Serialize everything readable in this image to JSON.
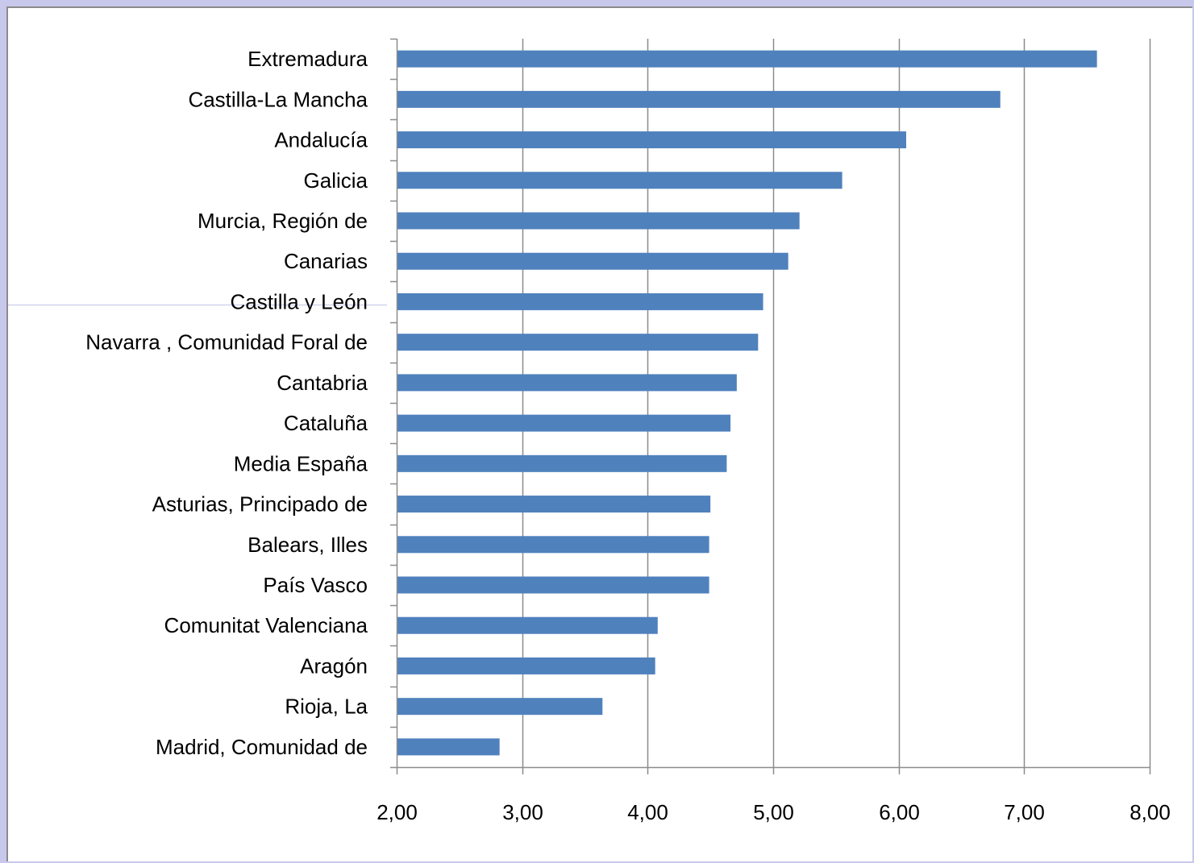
{
  "colors": {
    "bar": "#4f81bd",
    "grid": "#8c8c8c",
    "axis": "#8c8c8c",
    "background": "#ffffff",
    "frame": "#c8c8ec"
  },
  "chart_data": {
    "type": "bar",
    "orientation": "horizontal",
    "categories": [
      "Extremadura",
      "Castilla-La Mancha",
      "Andalucía",
      "Galicia",
      "Murcia, Región de",
      "Canarias",
      "Castilla y León",
      "Navarra , Comunidad Foral de",
      "Cantabria",
      "Cataluña",
      "Media España",
      "Asturias, Principado de",
      "Balears, Illes",
      "País Vasco",
      "Comunitat Valenciana",
      "Aragón",
      "Rioja, La",
      "Madrid, Comunidad de"
    ],
    "values": [
      7.58,
      6.81,
      6.06,
      5.55,
      5.21,
      5.12,
      4.92,
      4.88,
      4.71,
      4.66,
      4.63,
      4.5,
      4.49,
      4.49,
      4.08,
      4.06,
      3.64,
      2.82
    ],
    "xlim": [
      2,
      8
    ],
    "x_ticks": [
      "2,00",
      "3,00",
      "4,00",
      "5,00",
      "6,00",
      "7,00",
      "8,00"
    ],
    "grid": "vertical",
    "legend": "none"
  }
}
